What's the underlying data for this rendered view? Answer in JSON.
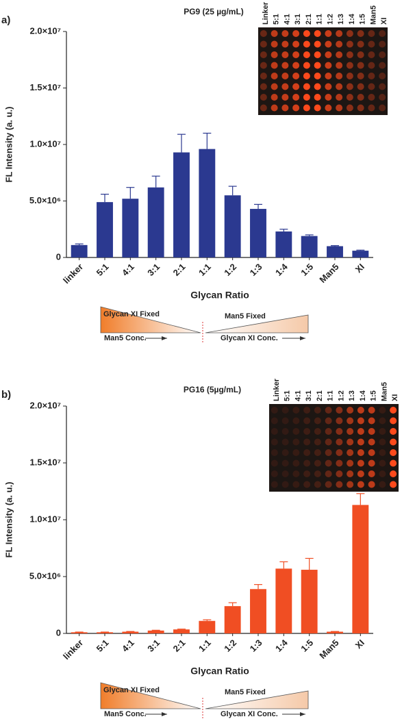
{
  "chart_data": [
    {
      "type": "bar",
      "panel": "a)",
      "title": "PG9 (25 µg/mL)",
      "x_label": "Glycan Ratio",
      "y_label": "FL Intensity (a. u.)",
      "categories": [
        "linker",
        "5:1",
        "4:1",
        "3:1",
        "2:1",
        "1:1",
        "1:2",
        "1:3",
        "1:4",
        "1:5",
        "Man5",
        "XI"
      ],
      "values": [
        1100000,
        4900000,
        5200000,
        6200000,
        9300000,
        9600000,
        5500000,
        4300000,
        2300000,
        1900000,
        1000000,
        600000
      ],
      "errors": [
        100000,
        700000,
        1000000,
        1000000,
        1600000,
        1400000,
        800000,
        400000,
        200000,
        100000,
        50000,
        50000
      ],
      "color": "#2b3990",
      "ylim": [
        0,
        20000000
      ],
      "yticks": [
        0,
        {
          "value": 5000000,
          "label": "5.0×10⁶"
        },
        {
          "value": 10000000,
          "label": "1.0×10⁷"
        },
        {
          "value": 15000000,
          "label": "1.5×10⁷"
        },
        {
          "value": 20000000,
          "label": "2.0×10⁷"
        }
      ],
      "inset_labels": [
        "Linker",
        "5:1",
        "4:1",
        "3:1",
        "2:1",
        "1:1",
        "1:2",
        "1:3",
        "1:4",
        "1:5",
        "Man5",
        "XI"
      ],
      "annotations": [
        "Glycan XI Fixed",
        "Man5 Fixed",
        "Man5 Conc.",
        "Glycan XI Conc."
      ]
    },
    {
      "type": "bar",
      "panel": "b)",
      "title": "PG16 (5µg/mL)",
      "x_label": "Glycan Ratio",
      "y_label": "FL Intensity (a. u.)",
      "categories": [
        "linker",
        "5:1",
        "4:1",
        "3:1",
        "2:1",
        "1:1",
        "1:2",
        "1:3",
        "1:4",
        "1:5",
        "Man5",
        "XI"
      ],
      "values": [
        100000,
        100000,
        150000,
        250000,
        350000,
        1100000,
        2400000,
        3900000,
        5700000,
        5600000,
        150000,
        11300000
      ],
      "errors": [
        20000,
        20000,
        20000,
        30000,
        30000,
        100000,
        300000,
        400000,
        600000,
        1000000,
        20000,
        1000000
      ],
      "color": "#f04e23",
      "ylim": [
        0,
        20000000
      ],
      "yticks": [
        0,
        {
          "value": 5000000,
          "label": "5.0×10⁶"
        },
        {
          "value": 10000000,
          "label": "1.0×10⁷"
        },
        {
          "value": 15000000,
          "label": "1.5×10⁷"
        },
        {
          "value": 20000000,
          "label": "2.0×10⁷"
        }
      ],
      "inset_labels": [
        "Linker",
        "5:1",
        "4:1",
        "3:1",
        "2:1",
        "1:1",
        "1:2",
        "1:3",
        "1:4",
        "1:5",
        "Man5",
        "XI"
      ],
      "annotations": [
        "Glycan XI Fixed",
        "Man5 Fixed",
        "Man5 Conc.",
        "Glycan XI Conc."
      ]
    }
  ]
}
